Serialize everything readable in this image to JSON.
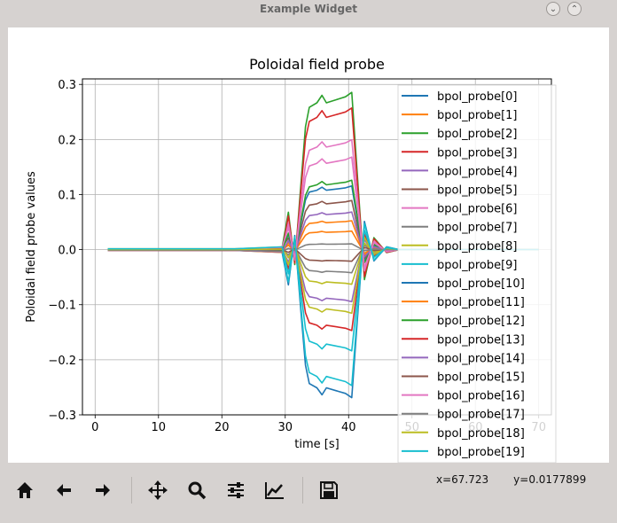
{
  "window": {
    "title": "Example Widget",
    "buttons": [
      "minimize-icon",
      "maximize-icon"
    ]
  },
  "toolbar": {
    "tools": [
      "home-icon",
      "back-arrow-icon",
      "forward-arrow-icon",
      "pan-icon",
      "zoom-icon",
      "configure-subplots-icon",
      "edit-axes-icon",
      "save-icon"
    ],
    "coord_x": "x=67.723",
    "coord_y": "y=0.0177899"
  },
  "chart_data": {
    "type": "line",
    "title": "Poloidal field probe",
    "xlabel": "time [s]",
    "ylabel": "Poloidal field probe values",
    "xlim": [
      -2,
      72
    ],
    "ylim": [
      -0.3,
      0.31
    ],
    "xticks": [
      "0",
      "10",
      "20",
      "30",
      "40",
      "50",
      "60",
      "70"
    ],
    "yticks": [
      "−0.3",
      "−0.2",
      "−0.1",
      "0.0",
      "0.1",
      "0.2",
      "0.3"
    ],
    "grid": true,
    "legend_position": "upper-right",
    "colors": [
      "#1f77b4",
      "#ff7f0e",
      "#2ca02c",
      "#d62728",
      "#9467bd",
      "#8c564b",
      "#e377c2",
      "#7f7f7f",
      "#bcbd22",
      "#17becf"
    ],
    "series": [
      {
        "name": "bpol_probe[0]",
        "plateau": -0.256
      },
      {
        "name": "bpol_probe[1]",
        "plateau": 0.032
      },
      {
        "name": "bpol_probe[2]",
        "plateau": 0.272
      },
      {
        "name": "bpol_probe[3]",
        "plateau": 0.245
      },
      {
        "name": "bpol_probe[4]",
        "plateau": -0.09
      },
      {
        "name": "bpol_probe[5]",
        "plateau": 0.085
      },
      {
        "name": "bpol_probe[6]",
        "plateau": 0.19
      },
      {
        "name": "bpol_probe[7]",
        "plateau": -0.04
      },
      {
        "name": "bpol_probe[8]",
        "plateau": -0.06
      },
      {
        "name": "bpol_probe[9]",
        "plateau": -0.235
      },
      {
        "name": "bpol_probe[10]",
        "plateau": 0.11
      },
      {
        "name": "bpol_probe[11]",
        "plateau": 0.05
      },
      {
        "name": "bpol_probe[12]",
        "plateau": 0.12
      },
      {
        "name": "bpol_probe[13]",
        "plateau": -0.14
      },
      {
        "name": "bpol_probe[14]",
        "plateau": 0.065
      },
      {
        "name": "bpol_probe[15]",
        "plateau": -0.02
      },
      {
        "name": "bpol_probe[16]",
        "plateau": 0.16
      },
      {
        "name": "bpol_probe[17]",
        "plateau": 0.01
      },
      {
        "name": "bpol_probe[18]",
        "plateau": -0.11
      },
      {
        "name": "bpol_probe[19]",
        "plateau": -0.175
      }
    ]
  }
}
